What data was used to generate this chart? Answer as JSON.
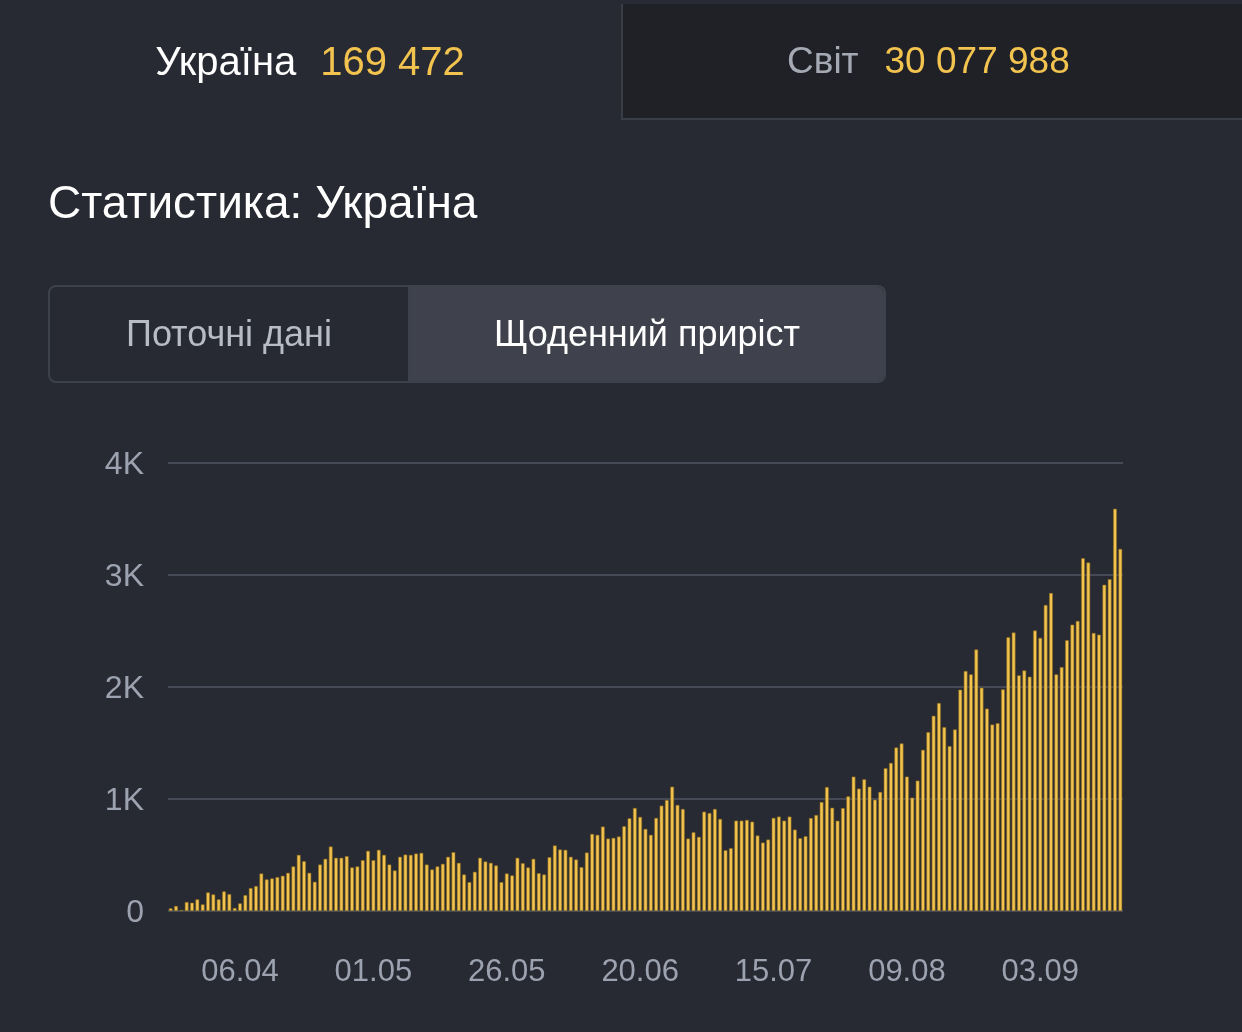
{
  "chart_data": {
    "type": "bar",
    "title": "Статистика: Україна",
    "annotations": [
      "Україна",
      "169 472",
      "Світ",
      "30 077 988",
      "Поточні дані",
      "Щоденний приріст"
    ],
    "categories": [
      null,
      null,
      null,
      null,
      null,
      null,
      null,
      null,
      null,
      null,
      null,
      null,
      null,
      "06.04",
      null,
      null,
      null,
      null,
      null,
      null,
      null,
      null,
      null,
      null,
      null,
      null,
      null,
      null,
      null,
      null,
      null,
      null,
      null,
      null,
      null,
      null,
      null,
      null,
      "01.05",
      null,
      null,
      null,
      null,
      null,
      null,
      null,
      null,
      null,
      null,
      null,
      null,
      null,
      null,
      null,
      null,
      null,
      null,
      null,
      null,
      null,
      null,
      null,
      null,
      "26.05",
      null,
      null,
      null,
      null,
      null,
      null,
      null,
      null,
      null,
      null,
      null,
      null,
      null,
      null,
      null,
      null,
      null,
      null,
      null,
      null,
      null,
      null,
      null,
      null,
      "20.06",
      null,
      null,
      null,
      null,
      null,
      null,
      null,
      null,
      null,
      null,
      null,
      null,
      null,
      null,
      null,
      null,
      null,
      null,
      null,
      null,
      null,
      null,
      null,
      null,
      "15.07",
      null,
      null,
      null,
      null,
      null,
      null,
      null,
      null,
      null,
      null,
      null,
      null,
      null,
      null,
      null,
      null,
      null,
      null,
      null,
      null,
      null,
      null,
      null,
      null,
      "09.08",
      null,
      null,
      null,
      null,
      null,
      null,
      null,
      null,
      null,
      null,
      null,
      null,
      null,
      null,
      null,
      null,
      null,
      null,
      null,
      null,
      null,
      null,
      null,
      null,
      "03.09",
      null,
      null,
      null,
      null,
      null,
      null,
      null,
      null,
      null,
      null,
      null,
      null,
      null,
      null,
      null
    ],
    "values": [
      24,
      45,
      9,
      80,
      74,
      104,
      59,
      166,
      148,
      104,
      175,
      151,
      27,
      68,
      142,
      205,
      223,
      335,
      282,
      291,
      303,
      315,
      341,
      398,
      501,
      445,
      341,
      261,
      415,
      466,
      576,
      475,
      475,
      490,
      389,
      398,
      454,
      537,
      454,
      546,
      501,
      415,
      362,
      484,
      504,
      501,
      513,
      519,
      415,
      371,
      398,
      421,
      484,
      525,
      430,
      326,
      258,
      350,
      475,
      442,
      430,
      407,
      258,
      335,
      318,
      475,
      427,
      389,
      466,
      338,
      326,
      481,
      585,
      549,
      546,
      484,
      460,
      392,
      522,
      688,
      680,
      754,
      647,
      653,
      665,
      757,
      828,
      920,
      840,
      733,
      680,
      831,
      941,
      991,
      1110,
      947,
      911,
      647,
      703,
      662,
      887,
      875,
      911,
      822,
      543,
      561,
      807,
      807,
      813,
      798,
      674,
      611,
      638,
      831,
      843,
      807,
      843,
      727,
      650,
      668,
      830,
      857,
      973,
      1107,
      922,
      806,
      919,
      1024,
      1200,
      1093,
      1176,
      1110,
      994,
      1063,
      1275,
      1322,
      1460,
      1496,
      1200,
      1012,
      1164,
      1439,
      1597,
      1743,
      1857,
      1642,
      1472,
      1621,
      1976,
      2143,
      2113,
      2335,
      1994,
      1807,
      1665,
      1677,
      1979,
      2444,
      2486,
      2104,
      2148,
      2092,
      2504,
      2439,
      2732,
      2839,
      2113,
      2178,
      2418,
      2557,
      2590,
      3150,
      3111,
      2483,
      2468,
      2913,
      2963,
      3591,
      3233
    ],
    "color": "#f3c350",
    "ylim": [
      0,
      4000
    ],
    "yticks": [
      0,
      {
        "value": 1000,
        "label": "1K"
      },
      {
        "value": 2000,
        "label": "2K"
      },
      {
        "value": 3000,
        "label": "3K"
      },
      {
        "value": 4000,
        "label": "4K"
      }
    ],
    "grid": "y"
  }
}
